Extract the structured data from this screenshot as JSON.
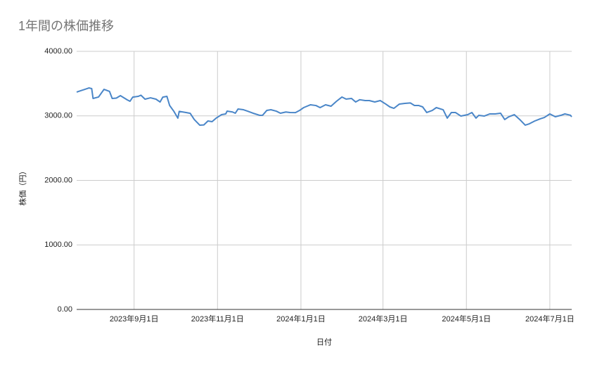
{
  "chart_data": {
    "type": "line",
    "title": "1年間の株価推移",
    "x_label": "日付",
    "y_label": "株価（円）",
    "x": [
      "2023-07-21",
      "2023-07-24",
      "2023-07-27",
      "2023-07-30",
      "2023-08-01",
      "2023-08-02",
      "2023-08-06",
      "2023-08-10",
      "2023-08-14",
      "2023-08-16",
      "2023-08-19",
      "2023-08-22",
      "2023-08-27",
      "2023-08-29",
      "2023-08-31",
      "2023-09-04",
      "2023-09-06",
      "2023-09-09",
      "2023-09-13",
      "2023-09-17",
      "2023-09-20",
      "2023-09-22",
      "2023-09-25",
      "2023-09-27",
      "2023-09-30",
      "2023-10-03",
      "2023-10-04",
      "2023-10-09",
      "2023-10-12",
      "2023-10-15",
      "2023-10-19",
      "2023-10-22",
      "2023-10-25",
      "2023-10-28",
      "2023-10-31",
      "2023-11-04",
      "2023-11-07",
      "2023-11-08",
      "2023-11-12",
      "2023-11-14",
      "2023-11-16",
      "2023-11-20",
      "2023-11-23",
      "2023-11-27",
      "2023-12-02",
      "2023-12-04",
      "2023-12-07",
      "2023-12-10",
      "2023-12-14",
      "2023-12-17",
      "2023-12-21",
      "2023-12-24",
      "2023-12-28",
      "2023-12-31",
      "2024-01-03",
      "2024-01-08",
      "2024-01-12",
      "2024-01-15",
      "2024-01-19",
      "2024-01-23",
      "2024-01-27",
      "2024-01-31",
      "2024-02-03",
      "2024-02-07",
      "2024-02-10",
      "2024-02-13",
      "2024-02-17",
      "2024-02-20",
      "2024-02-24",
      "2024-02-28",
      "2024-03-03",
      "2024-03-06",
      "2024-03-09",
      "2024-03-13",
      "2024-03-17",
      "2024-03-21",
      "2024-03-24",
      "2024-03-27",
      "2024-03-30",
      "2024-04-02",
      "2024-04-06",
      "2024-04-09",
      "2024-04-14",
      "2024-04-17",
      "2024-04-20",
      "2024-04-23",
      "2024-04-27",
      "2024-05-02",
      "2024-05-05",
      "2024-05-08",
      "2024-05-10",
      "2024-05-14",
      "2024-05-18",
      "2024-05-22",
      "2024-05-26",
      "2024-05-29",
      "2024-06-01",
      "2024-06-05",
      "2024-06-09",
      "2024-06-13",
      "2024-06-16",
      "2024-06-20",
      "2024-06-24",
      "2024-06-27",
      "2024-07-01",
      "2024-07-05",
      "2024-07-09",
      "2024-07-12",
      "2024-07-16",
      "2024-07-17"
    ],
    "series": [
      {
        "color": "#4a86c8",
        "values": [
          3368,
          3390,
          3411,
          3433,
          3422,
          3270,
          3292,
          3411,
          3380,
          3270,
          3275,
          3313,
          3248,
          3226,
          3290,
          3302,
          3320,
          3259,
          3280,
          3259,
          3215,
          3290,
          3302,
          3161,
          3073,
          2965,
          3070,
          3052,
          3040,
          2943,
          2856,
          2860,
          2921,
          2910,
          2965,
          3019,
          3030,
          3073,
          3060,
          3041,
          3106,
          3095,
          3073,
          3041,
          3008,
          3010,
          3084,
          3095,
          3073,
          3041,
          3060,
          3052,
          3050,
          3084,
          3128,
          3172,
          3160,
          3128,
          3172,
          3150,
          3226,
          3292,
          3260,
          3270,
          3215,
          3250,
          3237,
          3237,
          3215,
          3237,
          3183,
          3139,
          3117,
          3183,
          3193,
          3200,
          3161,
          3161,
          3139,
          3052,
          3084,
          3128,
          3095,
          2965,
          3052,
          3052,
          2997,
          3019,
          3052,
          2965,
          3008,
          2997,
          3030,
          3030,
          3041,
          2943,
          2986,
          3019,
          2943,
          2856,
          2877,
          2921,
          2954,
          2975,
          3030,
          2986,
          3008,
          3030,
          3010,
          2986
        ]
      }
    ],
    "xlim": [
      "2023-07-21",
      "2024-07-17"
    ],
    "xticks": [
      {
        "value": "2023-09-01",
        "label": "2023年9月1日"
      },
      {
        "value": "2023-11-01",
        "label": "2023年11月1日"
      },
      {
        "value": "2024-01-01",
        "label": "2024年1月1日"
      },
      {
        "value": "2024-03-01",
        "label": "2024年3月1日"
      },
      {
        "value": "2024-05-01",
        "label": "2024年5月1日"
      },
      {
        "value": "2024-07-01",
        "label": "2024年7月1日"
      }
    ],
    "ylim": [
      0,
      4000
    ],
    "yticks": [
      {
        "value": 0,
        "label": "0.00"
      },
      {
        "value": 1000,
        "label": "1000.00"
      },
      {
        "value": 2000,
        "label": "2000.00"
      },
      {
        "value": 3000,
        "label": "3000.00"
      },
      {
        "value": 4000,
        "label": "4000.00"
      }
    ],
    "grid": true
  }
}
